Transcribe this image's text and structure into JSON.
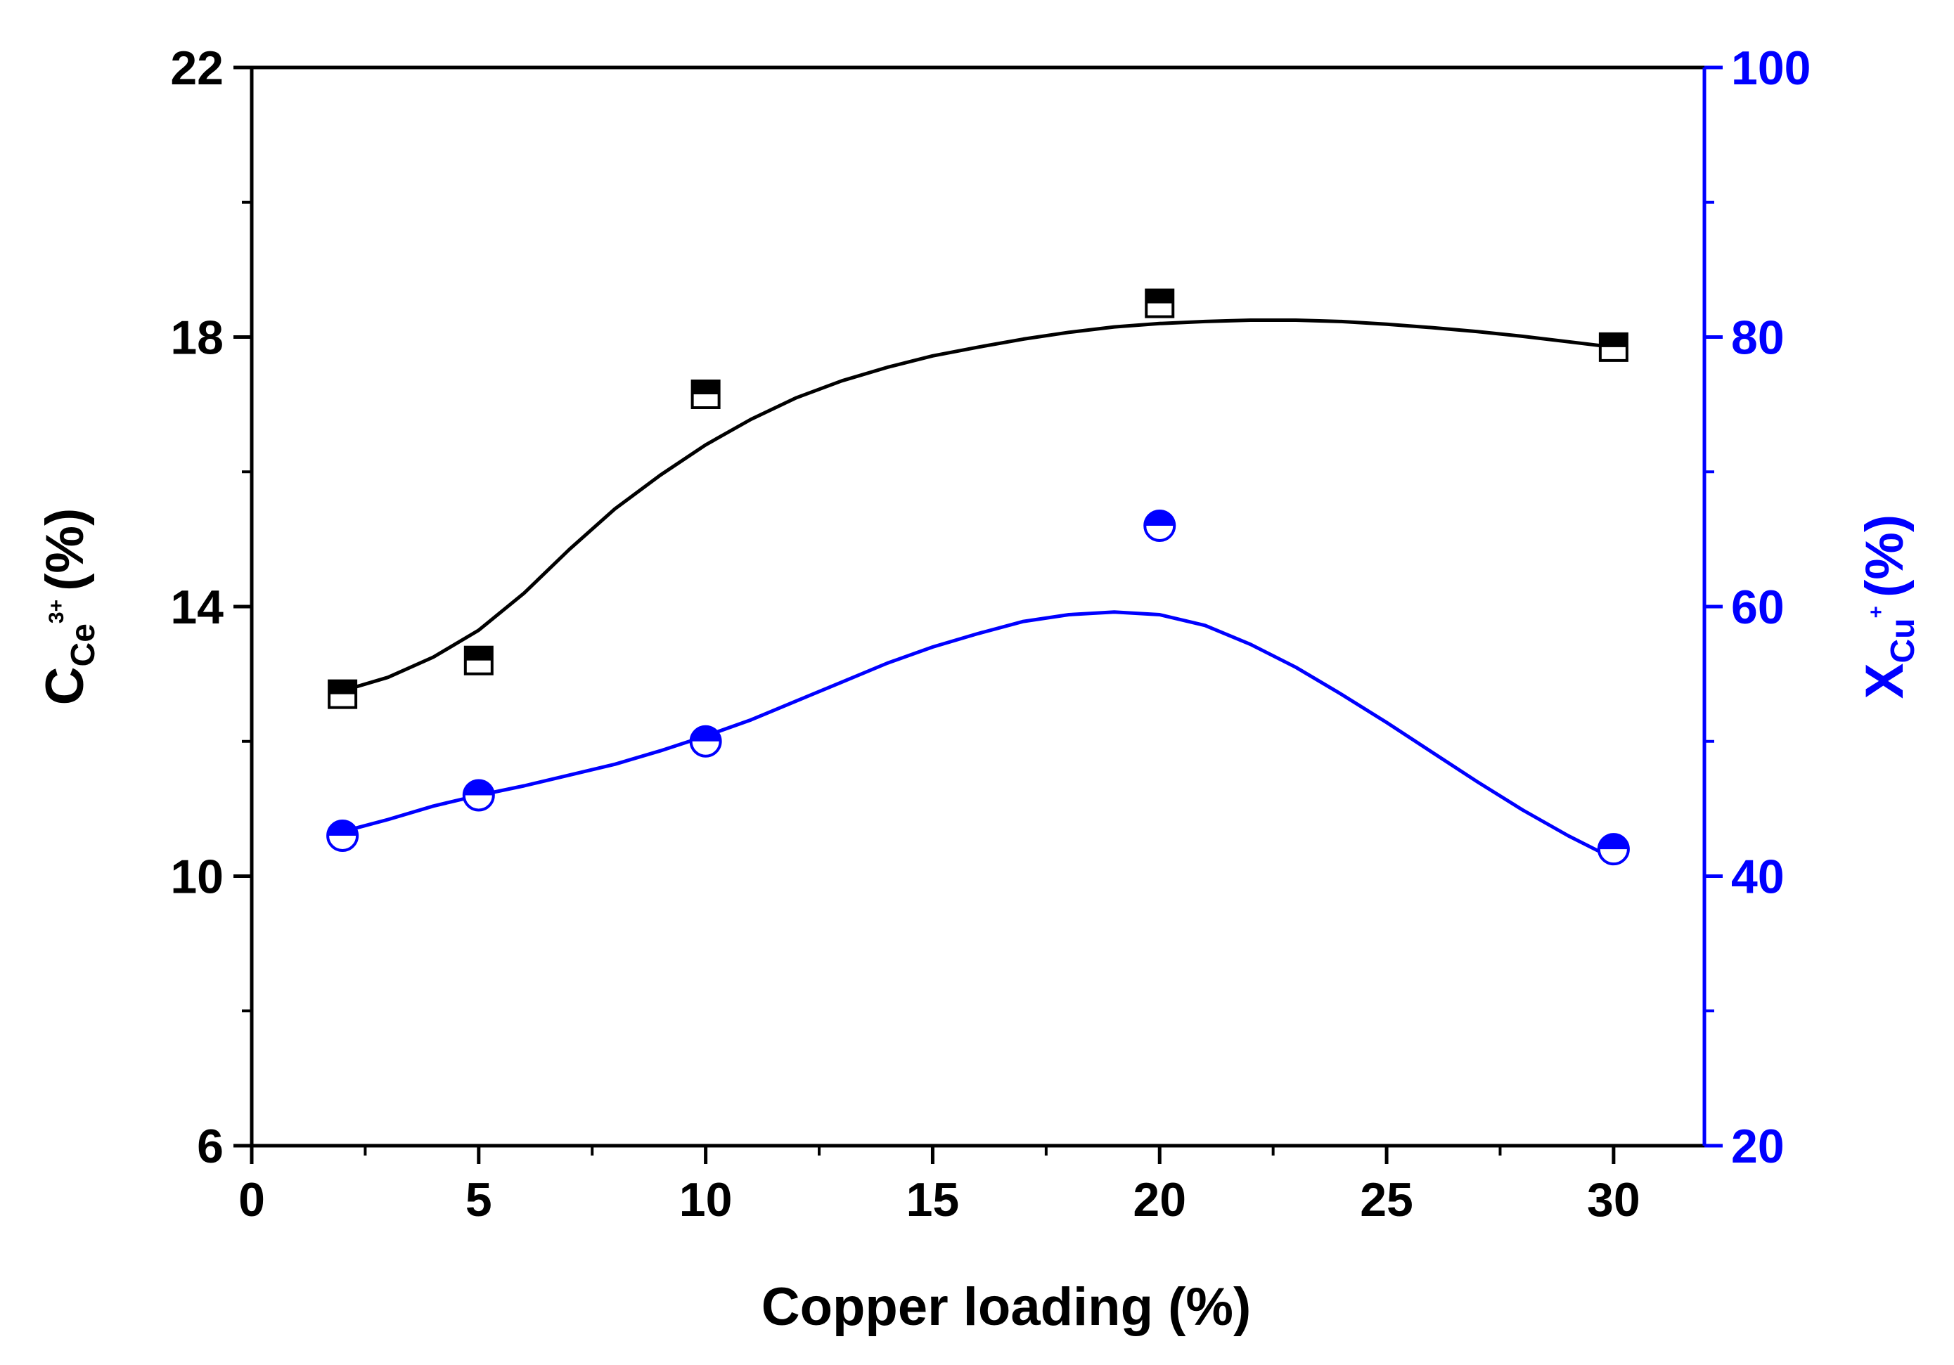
{
  "chart_data": {
    "type": "scatter",
    "title": "",
    "xlabel": "Copper loading (%)",
    "ylabel_left": {
      "main": "C",
      "sub": "Ce",
      "sup": "3+",
      "unit": "(%)"
    },
    "ylabel_right": {
      "main": "X",
      "sub": "Cu",
      "sup": "+",
      "unit": "(%)"
    },
    "xlim": [
      0,
      32
    ],
    "ylim_left": [
      6,
      22
    ],
    "ylim_right": [
      20,
      100
    ],
    "x_ticks": [
      "0",
      "5",
      "10",
      "15",
      "20",
      "25",
      "30"
    ],
    "y_left_ticks": [
      "6",
      "10",
      "14",
      "18",
      "22"
    ],
    "y_right_ticks": [
      "20",
      "40",
      "60",
      "80",
      "100"
    ],
    "series": [
      {
        "name": "C_Ce3+",
        "axis": "left",
        "marker": "half-filled-square",
        "color": "#000000",
        "x": [
          2,
          5,
          10,
          20,
          30
        ],
        "y": [
          12.7,
          13.2,
          17.15,
          18.5,
          17.85
        ],
        "fit_x": [
          2,
          3,
          4,
          5,
          6,
          7,
          8,
          9,
          10,
          11,
          12,
          13,
          14,
          15,
          16,
          17,
          18,
          19,
          20,
          21,
          22,
          23,
          24,
          25,
          26,
          27,
          28,
          29,
          30
        ],
        "fit_y": [
          12.75,
          12.95,
          13.25,
          13.65,
          14.2,
          14.85,
          15.45,
          15.95,
          16.4,
          16.78,
          17.1,
          17.35,
          17.55,
          17.72,
          17.85,
          17.97,
          18.07,
          18.15,
          18.2,
          18.23,
          18.25,
          18.25,
          18.23,
          18.19,
          18.14,
          18.08,
          18.01,
          17.93,
          17.85
        ]
      },
      {
        "name": "X_Cu+",
        "axis": "right",
        "marker": "half-filled-circle",
        "color": "#0000ff",
        "x": [
          2,
          5,
          10,
          20,
          30
        ],
        "y": [
          43,
          46,
          50,
          66,
          42
        ],
        "fit_x": [
          2,
          3,
          4,
          5,
          6,
          7,
          8,
          9,
          10,
          11,
          12,
          13,
          14,
          15,
          16,
          17,
          18,
          19,
          20,
          21,
          22,
          23,
          24,
          25,
          26,
          27,
          28,
          29,
          30
        ],
        "fit_y": [
          43.3,
          44.2,
          45.2,
          46.0,
          46.7,
          47.5,
          48.3,
          49.3,
          50.4,
          51.6,
          53.0,
          54.4,
          55.8,
          57.0,
          58.0,
          58.9,
          59.4,
          59.6,
          59.4,
          58.6,
          57.2,
          55.5,
          53.5,
          51.4,
          49.2,
          47.0,
          44.9,
          43.0,
          41.3
        ]
      }
    ],
    "grid": false,
    "legend": "none"
  },
  "colors": {
    "left_axis": "#000000",
    "right_axis": "#0000ff",
    "background": "#ffffff"
  }
}
